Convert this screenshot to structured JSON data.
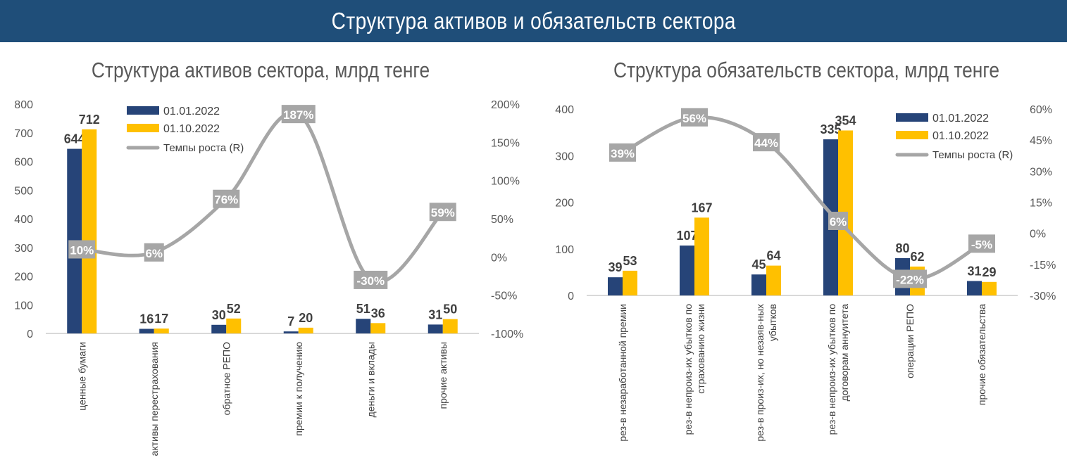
{
  "header": {
    "title": "Структура активов и обязательств сектора"
  },
  "colors": {
    "banner": "#1f4e79",
    "series1": "#264478",
    "series2": "#ffc000",
    "growth": "#a6a6a6"
  },
  "chart_data": [
    {
      "type": "bar+line",
      "title": "Структура активов сектора, млрд тенге",
      "categories": [
        "ценные бумаги",
        "активы перестрахования",
        "обратное РЕПО",
        "премии к получению",
        "деньги и вклады",
        "прочие активы"
      ],
      "series": [
        {
          "name": "01.01.2022",
          "type": "bar",
          "axis": "left",
          "values": [
            644,
            16,
            30,
            7,
            51,
            31
          ]
        },
        {
          "name": "01.10.2022",
          "type": "bar",
          "axis": "left",
          "values": [
            712,
            17,
            52,
            20,
            36,
            50
          ]
        },
        {
          "name": "Темпы роста (R)",
          "type": "line",
          "axis": "right",
          "unit": "%",
          "values": [
            10,
            6,
            76,
            187,
            -30,
            59
          ]
        }
      ],
      "ylim": [
        0,
        800
      ],
      "yticks": [
        0,
        100,
        200,
        300,
        400,
        500,
        600,
        700,
        800
      ],
      "y2lim": [
        -100,
        200
      ],
      "y2ticks": [
        -100,
        -50,
        0,
        50,
        100,
        150,
        200
      ],
      "legend": "top-center",
      "grid": false
    },
    {
      "type": "bar+line",
      "title": "Структура обязательств сектора, млрд тенге",
      "categories": [
        "рез-в незаработанной премии",
        "рез-в непроиз-их убытков по страхованию жизни",
        "рез-в произ-их, но незаяв-ных убытков",
        "рез-в непроиз-их убытков по договорам аннуитета",
        "операции РЕПО",
        "прочие обязательства"
      ],
      "series": [
        {
          "name": "01.01.2022",
          "type": "bar",
          "axis": "left",
          "values": [
            39,
            107,
            45,
            335,
            80,
            31
          ]
        },
        {
          "name": "01.10.2022",
          "type": "bar",
          "axis": "left",
          "values": [
            53,
            167,
            64,
            354,
            62,
            29
          ]
        },
        {
          "name": "Темпы роста (R)",
          "type": "line",
          "axis": "right",
          "unit": "%",
          "values": [
            39,
            56,
            44,
            6,
            -22,
            -5
          ]
        }
      ],
      "ylim": [
        0,
        400
      ],
      "yticks": [
        0,
        100,
        200,
        300,
        400
      ],
      "y2lim": [
        -30,
        60
      ],
      "y2ticks": [
        -30,
        -15,
        0,
        15,
        30,
        45,
        60
      ],
      "legend": "top-right",
      "grid": false
    }
  ]
}
